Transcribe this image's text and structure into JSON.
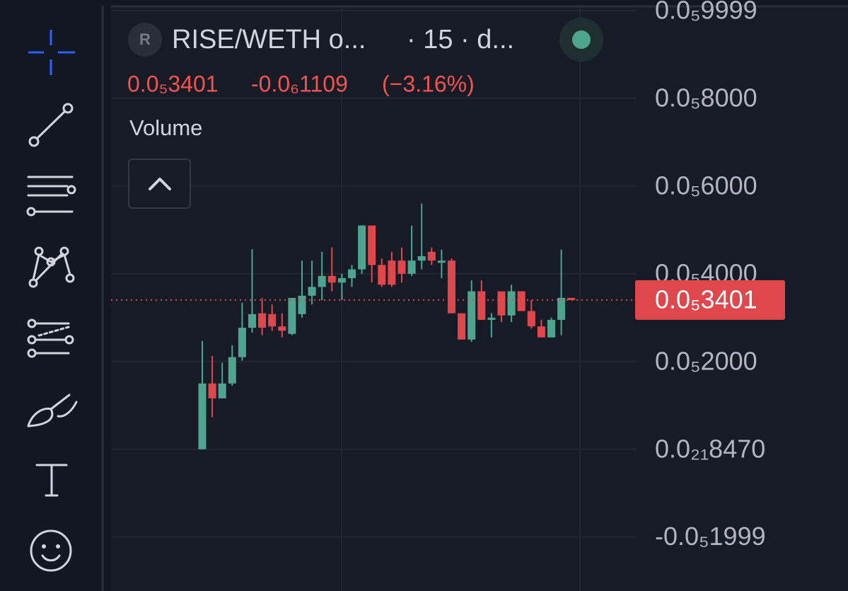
{
  "chart_data": {
    "type": "candlestick",
    "symbol": "R",
    "title": "RISE/WETH o...",
    "subtitle": "· 15 · d...",
    "legend_change": "-0.0₆1109",
    "legend_change_pct": "(−3.16%)",
    "indicator": "Volume",
    "last_price": {
      "value": 3.401e-06,
      "label": "0.0₅3401"
    },
    "up_color": "#4ea58f",
    "down_color": "#e0474c",
    "ylim": [
      -3.23e-06,
      1.011e-05
    ],
    "yticks": [
      {
        "value": 9.999e-06,
        "label": "0.0₅9999"
      },
      {
        "value": 8e-06,
        "label": "0.0₅8000"
      },
      {
        "value": 6e-06,
        "label": "0.0₅6000"
      },
      {
        "value": 4e-06,
        "label": "0.0₅4000"
      },
      {
        "value": 2e-06,
        "label": "0.0₅2000"
      },
      {
        "value": 8.47e-22,
        "label": "0.0₂₁8470"
      },
      {
        "value": -1.999e-06,
        "label": "-0.0₅1999"
      }
    ],
    "grid": true,
    "open": [
      0,
      1.5e-06,
      1.16e-06,
      1.5e-06,
      2.1e-06,
      2.77e-06,
      3.1e-06,
      3.08e-06,
      2.8e-06,
      2.63e-06,
      3.08e-06,
      3.5e-06,
      3.7e-06,
      3.95e-06,
      3.8e-06,
      3.9e-06,
      4.1e-06,
      5.1e-06,
      4.2e-06,
      4.3e-06,
      4.3e-06,
      4e-06,
      4.3e-06,
      4.5e-06,
      4.25e-06,
      4.3e-06,
      3.1e-06,
      2.5e-06,
      3.6e-06,
      2.95e-06,
      3.6e-06,
      3.05e-06,
      3.6e-06,
      3.15e-06,
      2.8e-06,
      2.55e-06,
      2.95e-06,
      3.45e-06
    ],
    "high": [
      2.47e-06,
      2.13e-06,
      1.97e-06,
      2.37e-06,
      3.34e-06,
      4.56e-06,
      3.45e-06,
      3.3e-06,
      3.1e-06,
      3.45e-06,
      4.3e-06,
      4.3e-06,
      4.5e-06,
      4.6e-06,
      4e-06,
      4.2e-06,
      5.1e-06,
      5.1e-06,
      4.35e-06,
      4.5e-06,
      4.6e-06,
      5.1e-06,
      5.6e-06,
      4.6e-06,
      4.55e-06,
      4.35e-06,
      3.1e-06,
      3.85e-06,
      3.85e-06,
      3.1e-06,
      3.6e-06,
      3.75e-06,
      3.6e-06,
      3.4e-06,
      2.95e-06,
      3e-06,
      4.55e-06,
      3.45e-06
    ],
    "low": [
      0,
      7.3e-07,
      1.16e-06,
      1.45e-06,
      2.02e-06,
      2.66e-06,
      2.6e-06,
      2.7e-06,
      2.55e-06,
      2.6e-06,
      3e-06,
      3.3e-06,
      3.4e-06,
      3.6e-06,
      3.4e-06,
      3.7e-06,
      4e-06,
      3.8e-06,
      3.7e-06,
      3.7e-06,
      3.8e-06,
      3.95e-06,
      4.1e-06,
      4.2e-06,
      3.9e-06,
      3.1e-06,
      2.5e-06,
      2.45e-06,
      2.95e-06,
      2.55e-06,
      2.9e-06,
      2.9e-06,
      3.15e-06,
      2.75e-06,
      2.55e-06,
      2.55e-06,
      2.6e-06,
      3.4e-06
    ],
    "close": [
      1.5e-06,
      1.16e-06,
      1.5e-06,
      2.1e-06,
      2.77e-06,
      3.08e-06,
      2.77e-06,
      2.8e-06,
      2.7e-06,
      3.45e-06,
      3.5e-06,
      3.7e-06,
      3.95e-06,
      3.8e-06,
      3.9e-06,
      4.1e-06,
      5.1e-06,
      4.2e-06,
      3.75e-06,
      3.75e-06,
      4e-06,
      4.3e-06,
      4.4e-06,
      4.3e-06,
      4.3e-06,
      3.1e-06,
      2.5e-06,
      3.6e-06,
      2.95e-06,
      3e-06,
      3.05e-06,
      3.6e-06,
      3.15e-06,
      2.8e-06,
      2.55e-06,
      2.95e-06,
      3.45e-06,
      3.4e-06
    ]
  }
}
